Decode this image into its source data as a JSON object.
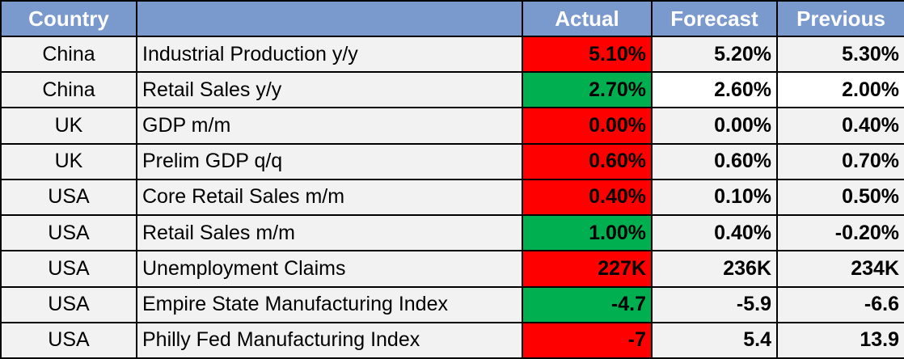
{
  "header": {
    "country": "Country",
    "event": "",
    "actual": "Actual",
    "forecast": "Forecast",
    "previous": "Previous"
  },
  "colors": {
    "header_bg": "#7a99cc",
    "negative_surprise": "#ff0000",
    "positive_surprise": "#00b050",
    "row_bg": "#f2f2f2"
  },
  "rows": [
    {
      "country": "China",
      "event": "Industrial Production y/y",
      "actual": "5.10%",
      "forecast": "5.20%",
      "previous": "5.30%",
      "actual_color": "red"
    },
    {
      "country": "China",
      "event": "Retail Sales y/y",
      "actual": "2.70%",
      "forecast": "2.60%",
      "previous": "2.00%",
      "actual_color": "green"
    },
    {
      "country": "UK",
      "event": "GDP m/m",
      "actual": "0.00%",
      "forecast": "0.00%",
      "previous": "0.40%",
      "actual_color": "red"
    },
    {
      "country": "UK",
      "event": "Prelim GDP q/q",
      "actual": "0.60%",
      "forecast": "0.60%",
      "previous": "0.70%",
      "actual_color": "red"
    },
    {
      "country": "USA",
      "event": "Core Retail Sales m/m",
      "actual": "0.40%",
      "forecast": "0.10%",
      "previous": "0.50%",
      "actual_color": "red"
    },
    {
      "country": "USA",
      "event": "Retail Sales m/m",
      "actual": "1.00%",
      "forecast": "0.40%",
      "previous": "-0.20%",
      "actual_color": "green"
    },
    {
      "country": "USA",
      "event": "Unemployment Claims",
      "actual": "227K",
      "forecast": "236K",
      "previous": "234K",
      "actual_color": "red"
    },
    {
      "country": "USA",
      "event": "Empire State Manufacturing Index",
      "actual": "-4.7",
      "forecast": "-5.9",
      "previous": "-6.6",
      "actual_color": "green"
    },
    {
      "country": "USA",
      "event": "Philly Fed Manufacturing Index",
      "actual": "-7",
      "forecast": "5.4",
      "previous": "13.9",
      "actual_color": "red"
    }
  ]
}
